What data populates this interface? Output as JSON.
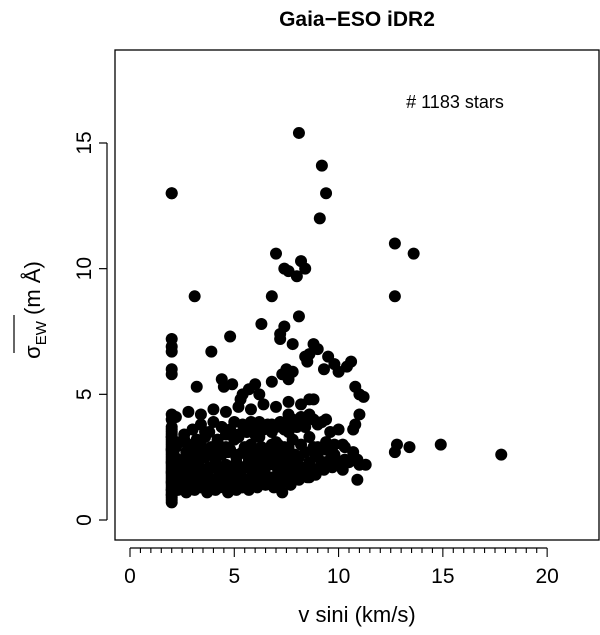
{
  "chart_data": {
    "type": "scatter",
    "title": "Gaia−ESO iDR2",
    "xlabel": "v sini (km/s)",
    "ylabel_main": "σ",
    "ylabel_sub": "EW",
    "ylabel_unit": " (m Å)",
    "annotation": "#  1183  stars",
    "xlim": [
      0,
      21
    ],
    "ylim": [
      0,
      18.7
    ],
    "xticks": [
      0,
      5,
      10,
      15,
      20
    ],
    "xminor_step": 0.5,
    "yticks": [
      0,
      5,
      10,
      15
    ],
    "marker_color": "#000000",
    "series": [
      {
        "x": [
          2.0,
          2.0,
          2.0,
          2.0,
          2.0,
          2.0,
          2.0,
          2.0,
          2.0,
          2.0,
          2.0,
          2.0,
          2.0,
          2.0,
          2.0,
          2.0,
          2.0,
          2.0,
          2.0,
          2.0,
          2.0,
          2.0,
          2.0,
          2.0,
          2.0,
          2.0,
          2.0,
          2.0,
          2.0,
          2.0,
          2.0,
          2.0,
          2.0,
          2.0,
          2.0,
          2.0,
          2.0,
          2.0,
          2.2,
          2.3,
          2.4,
          2.5,
          2.6,
          2.7,
          2.8,
          2.9,
          3.0,
          3.1,
          3.2,
          3.3,
          3.4,
          3.5,
          3.6,
          3.7,
          3.8,
          3.9,
          4.0,
          4.1,
          4.2,
          4.3,
          4.4,
          4.5,
          4.6,
          4.7,
          4.8,
          4.9,
          5.0,
          5.1,
          5.2,
          5.3,
          5.4,
          5.5,
          5.6,
          5.7,
          5.8,
          5.9,
          6.0,
          6.1,
          6.2,
          6.3,
          6.4,
          6.5,
          6.6,
          6.7,
          6.8,
          6.9,
          7.0,
          7.1,
          7.2,
          7.3,
          7.4,
          7.5,
          7.6,
          7.7,
          7.8,
          7.9,
          8.0,
          8.2,
          8.4,
          8.6,
          8.8,
          9.0,
          9.2,
          9.4,
          9.6,
          9.8,
          2.3,
          2.5,
          2.7,
          2.9,
          3.1,
          3.3,
          3.5,
          3.7,
          3.9,
          4.1,
          4.3,
          4.5,
          4.7,
          4.9,
          5.1,
          5.3,
          5.5,
          5.7,
          5.9,
          6.1,
          6.3,
          6.5,
          6.7,
          6.9,
          7.1,
          7.3,
          7.5,
          7.7,
          7.9,
          8.1,
          8.3,
          8.5,
          8.7,
          8.9,
          9.1,
          9.3,
          9.5,
          9.7,
          9.9,
          10.1,
          10.3,
          10.5,
          10.7,
          10.9,
          2.4,
          2.6,
          2.8,
          3.0,
          3.2,
          3.4,
          3.6,
          3.8,
          4.0,
          4.2,
          4.4,
          4.6,
          4.8,
          5.0,
          5.2,
          5.4,
          5.6,
          5.8,
          6.0,
          6.2,
          6.4,
          6.6,
          6.8,
          7.0,
          7.2,
          7.4,
          7.6,
          7.8,
          8.0,
          8.2,
          8.4,
          8.6,
          8.8,
          9.0,
          2.2,
          2.6,
          3.0,
          3.4,
          3.8,
          4.2,
          4.6,
          5.0,
          5.4,
          5.8,
          6.2,
          6.6,
          7.0,
          7.4,
          7.8,
          8.2,
          8.6,
          9.0,
          9.4,
          9.8,
          2.1,
          2.5,
          2.9,
          3.3,
          3.7,
          4.1,
          4.5,
          4.9,
          5.3,
          5.7,
          6.1,
          6.5,
          6.9,
          7.3,
          7.7,
          8.1,
          8.5,
          8.9,
          9.3,
          10.2,
          10.6,
          11.0,
          2.2,
          2.8,
          3.4,
          4.0,
          4.6,
          5.2,
          5.8,
          6.4,
          7.0,
          7.6,
          8.2,
          8.8,
          2.1,
          2.3,
          2.7,
          3.1,
          3.5,
          3.9,
          4.3,
          4.7,
          5.1,
          5.5,
          5.9,
          6.3,
          6.7,
          7.1,
          7.5,
          3.0,
          3.4,
          3.8,
          4.2,
          4.6,
          5.0,
          5.4,
          5.8,
          6.2,
          6.6,
          7.0,
          7.4,
          7.8,
          8.2,
          8.6,
          3.6,
          4.4,
          5.2,
          6.0,
          6.8,
          7.6,
          8.4,
          9.2,
          10.0,
          10.8,
          2.0,
          2.0,
          2.0,
          2.0,
          2.0,
          2.0,
          2.0,
          2.0,
          4.4,
          4.5,
          4.9,
          5.4,
          5.7,
          6.0,
          6.2,
          6.8,
          7.3,
          7.5,
          7.6,
          7.8,
          8.5,
          8.6,
          9.0,
          9.3,
          9.5,
          9.8,
          10.0,
          10.4,
          10.6,
          10.8,
          11.0,
          11.2,
          3.2,
          3.9,
          4.8,
          5.3,
          6.3,
          7.2,
          7.4,
          7.8,
          8.1,
          8.4,
          8.8,
          9.4,
          9.6,
          10.2,
          10.3,
          10.7,
          2.0,
          3.1,
          6.8,
          7.0,
          7.2,
          7.4,
          7.6,
          8.0,
          8.2,
          8.4,
          8.6,
          9.1,
          9.2,
          9.4,
          12.7,
          12.7,
          13.6,
          8.1,
          10.9,
          11.3,
          12.8,
          13.4,
          14.9,
          17.8,
          12.7,
          11.0,
          10.7,
          7.6,
          7.3,
          5.8
        ],
        "y": [
          0.7,
          0.9,
          1.1,
          1.3,
          1.5,
          1.7,
          1.9,
          2.1,
          2.3,
          2.5,
          2.7,
          2.9,
          3.1,
          3.3,
          3.5,
          3.7,
          4.2,
          1.0,
          1.4,
          1.8,
          2.2,
          2.6,
          3.0,
          3.4,
          1.2,
          1.6,
          2.0,
          2.4,
          2.8,
          3.2,
          3.6,
          4.0,
          5.8,
          6.0,
          6.7,
          6.9,
          7.2,
          13.0,
          1.6,
          2.0,
          1.4,
          2.2,
          1.8,
          2.6,
          1.5,
          2.4,
          1.9,
          2.8,
          1.6,
          2.3,
          2.0,
          1.7,
          2.5,
          1.8,
          2.1,
          2.9,
          1.6,
          2.4,
          2.0,
          1.7,
          2.6,
          1.9,
          2.2,
          1.5,
          2.8,
          2.0,
          1.7,
          2.3,
          2.6,
          1.8,
          2.1,
          2.9,
          1.6,
          2.4,
          2.0,
          2.7,
          1.8,
          2.3,
          2.5,
          1.9,
          2.8,
          2.1,
          2.4,
          1.7,
          3.0,
          2.2,
          2.6,
          1.9,
          2.3,
          2.8,
          2.0,
          2.5,
          2.9,
          1.8,
          2.2,
          2.6,
          2.4,
          2.1,
          2.7,
          2.3,
          2.9,
          2.5,
          2.2,
          2.8,
          2.4,
          2.6,
          1.2,
          1.3,
          1.1,
          1.4,
          1.2,
          1.5,
          1.3,
          1.1,
          1.4,
          1.2,
          1.3,
          1.5,
          1.1,
          1.4,
          1.2,
          1.3,
          1.5,
          1.2,
          1.4,
          1.3,
          1.6,
          1.4,
          1.5,
          1.3,
          1.7,
          1.5,
          1.6,
          1.4,
          1.8,
          1.6,
          1.9,
          1.7,
          2.0,
          1.8,
          2.1,
          2.0,
          2.2,
          2.1,
          2.3,
          2.2,
          2.4,
          2.3,
          2.5,
          2.4,
          3.1,
          3.4,
          3.0,
          3.6,
          3.2,
          3.8,
          3.3,
          3.5,
          3.9,
          3.2,
          3.7,
          3.4,
          3.6,
          3.9,
          3.3,
          3.8,
          3.5,
          3.7,
          3.4,
          3.9,
          3.6,
          3.8,
          3.5,
          3.7,
          3.9,
          3.6,
          3.8,
          4.0,
          3.7,
          4.1,
          3.9,
          4.2,
          4.0,
          3.8,
          2.9,
          3.2,
          2.7,
          3.0,
          2.8,
          3.1,
          2.9,
          3.2,
          2.7,
          3.0,
          3.3,
          2.8,
          3.1,
          2.9,
          3.2,
          3.0,
          3.3,
          2.9,
          3.1,
          3.0,
          1.8,
          1.6,
          2.1,
          1.7,
          1.9,
          2.2,
          1.8,
          2.0,
          1.7,
          2.3,
          1.9,
          2.1,
          2.4,
          2.0,
          2.2,
          2.5,
          2.1,
          2.6,
          2.3,
          2.0,
          2.4,
          2.2,
          4.1,
          4.3,
          4.2,
          4.4,
          4.3,
          4.5,
          4.4,
          4.6,
          4.5,
          4.7,
          4.6,
          4.8,
          2.6,
          2.4,
          2.7,
          2.5,
          2.8,
          2.6,
          2.9,
          2.7,
          2.5,
          2.8,
          2.6,
          2.9,
          2.7,
          3.0,
          2.8,
          1.5,
          1.3,
          1.6,
          1.4,
          1.7,
          1.5,
          1.3,
          1.6,
          1.4,
          1.7,
          1.5,
          1.8,
          1.6,
          1.9,
          1.7,
          3.5,
          3.7,
          3.4,
          3.6,
          3.8,
          3.5,
          3.7,
          3.9,
          3.6,
          3.8,
          0.8,
          1.0,
          1.2,
          1.5,
          1.9,
          2.3,
          2.8,
          3.3,
          5.6,
          5.3,
          5.4,
          5.0,
          5.2,
          5.4,
          5.0,
          5.5,
          5.8,
          6.0,
          5.6,
          5.9,
          6.3,
          6.6,
          6.8,
          6.0,
          6.5,
          6.2,
          5.9,
          6.1,
          6.3,
          5.3,
          5.0,
          4.9,
          5.3,
          6.7,
          7.3,
          4.8,
          7.8,
          7.4,
          7.7,
          7.0,
          8.1,
          6.5,
          7.0,
          4.0,
          3.5,
          3.0,
          2.9,
          2.7,
          13.0,
          8.9,
          8.9,
          10.6,
          7.2,
          10.0,
          9.9,
          9.7,
          10.3,
          10.0,
          4.8,
          12.0,
          14.1,
          13.0,
          8.9,
          11.0,
          10.6,
          15.4,
          1.6,
          2.2,
          3.0,
          2.9,
          3.0,
          2.6,
          2.7,
          4.2,
          3.6,
          4.2,
          1.1,
          3.9
        ]
      }
    ]
  }
}
